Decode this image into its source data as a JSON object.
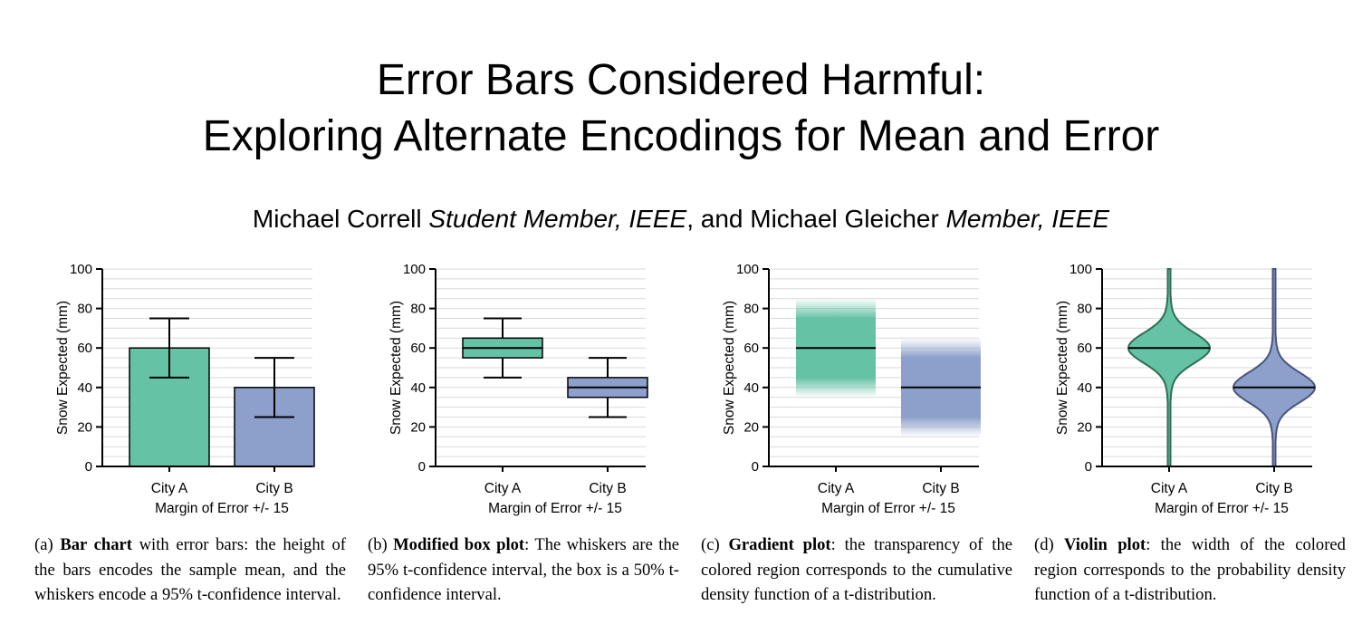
{
  "paper": {
    "title_line1": "Error Bars Considered Harmful:",
    "title_line2": "Exploring Alternate Encodings for Mean and Error",
    "author1": "Michael Correll",
    "author1_role": "Student Member, IEEE",
    "and_sep": ", and ",
    "author2": "Michael Gleicher",
    "author2_role": "Member, IEEE"
  },
  "chart_data": [
    {
      "type": "bar",
      "variant": "bar-with-error-bars",
      "categories": [
        "City A",
        "City B"
      ],
      "values": [
        60,
        40
      ],
      "error_low": [
        45,
        25
      ],
      "error_high": [
        75,
        55
      ],
      "ylabel": "Snow Expected (mm)",
      "xlabel": "Margin of Error +/- 15",
      "ylim": [
        0,
        100
      ],
      "yticks": [
        0,
        20,
        40,
        60,
        80,
        100
      ],
      "grid": true,
      "colors": [
        "#66c2a5",
        "#8da0cb"
      ]
    },
    {
      "type": "box",
      "variant": "modified-box-plot",
      "categories": [
        "City A",
        "City B"
      ],
      "values": [
        60,
        40
      ],
      "box_low": [
        55,
        35
      ],
      "box_high": [
        65,
        45
      ],
      "whisker_low": [
        45,
        25
      ],
      "whisker_high": [
        75,
        55
      ],
      "ylabel": "Snow Expected (mm)",
      "xlabel": "Margin of Error +/- 15",
      "ylim": [
        0,
        100
      ],
      "yticks": [
        0,
        20,
        40,
        60,
        80,
        100
      ],
      "grid": true,
      "colors": [
        "#66c2a5",
        "#8da0cb"
      ]
    },
    {
      "type": "gradient",
      "variant": "gradient-plot",
      "categories": [
        "City A",
        "City B"
      ],
      "values": [
        60,
        40
      ],
      "solid_low": [
        45,
        25
      ],
      "solid_high": [
        75,
        55
      ],
      "fade_low": [
        35,
        15
      ],
      "fade_high": [
        85,
        65
      ],
      "ylabel": "Snow Expected (mm)",
      "xlabel": "Margin of Error +/- 15",
      "ylim": [
        0,
        100
      ],
      "yticks": [
        0,
        20,
        40,
        60,
        80,
        100
      ],
      "grid": true,
      "colors": [
        "#66c2a5",
        "#8da0cb"
      ]
    },
    {
      "type": "violin",
      "variant": "violin-plot",
      "categories": [
        "City A",
        "City B"
      ],
      "values": [
        60,
        40
      ],
      "scale": [
        7.5,
        7.5
      ],
      "ylabel": "Snow Expected (mm)",
      "xlabel": "Margin of Error +/- 15",
      "ylim": [
        0,
        100
      ],
      "yticks": [
        0,
        20,
        40,
        60,
        80,
        100
      ],
      "grid": true,
      "colors": [
        "#66c2a5",
        "#8da0cb"
      ],
      "edge_colors": [
        "#2e6e55",
        "#47557a"
      ]
    }
  ],
  "captions": [
    {
      "label": "(a) ",
      "bold": "Bar chart",
      "text": " with error bars: the height of the bars encodes the sample mean, and the whiskers encode a 95% t-confidence interval."
    },
    {
      "label": "(b) ",
      "bold": "Modified box plot",
      "text": ": The whiskers are the 95% t-confidence interval, the box is a 50% t-confidence interval."
    },
    {
      "label": "(c) ",
      "bold": "Gradient plot",
      "text": ": the transparency of the colored region corresponds to the cumulative density function of a t-distribution."
    },
    {
      "label": "(d) ",
      "bold": "Violin plot",
      "text": ": the width of the colored region corresponds to the probability density function of a t-distribution."
    }
  ]
}
